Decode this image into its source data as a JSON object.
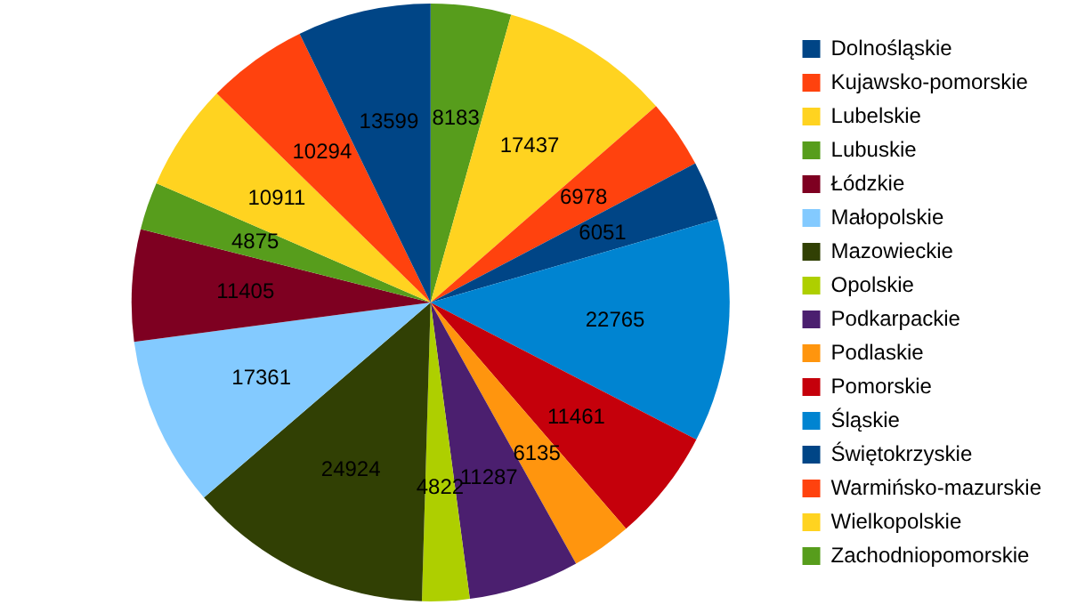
{
  "chart_data": {
    "type": "pie",
    "categories": [
      "Dolnośląskie",
      "Kujawsko-pomorskie",
      "Lubelskie",
      "Lubuskie",
      "Łódzkie",
      "Małopolskie",
      "Mazowieckie",
      "Opolskie",
      "Podkarpackie",
      "Podlaskie",
      "Pomorskie",
      "Śląskie",
      "Świętokrzyskie",
      "Warmińsko-mazurskie",
      "Wielkopolskie",
      "Zachodniopomorskie"
    ],
    "values": [
      13599,
      10294,
      10911,
      4875,
      11405,
      17361,
      24924,
      4822,
      11287,
      6135,
      11461,
      22765,
      6051,
      6978,
      17437,
      8183
    ],
    "colors": [
      "#004586",
      "#ff420e",
      "#ffd320",
      "#579d1c",
      "#7e0021",
      "#83caff",
      "#314004",
      "#aecf00",
      "#4b1f6f",
      "#ff950e",
      "#c5000b",
      "#0084d1",
      "#004586",
      "#ff420e",
      "#ffd320",
      "#579d1c"
    ],
    "data_labels": true,
    "legend": "right"
  }
}
